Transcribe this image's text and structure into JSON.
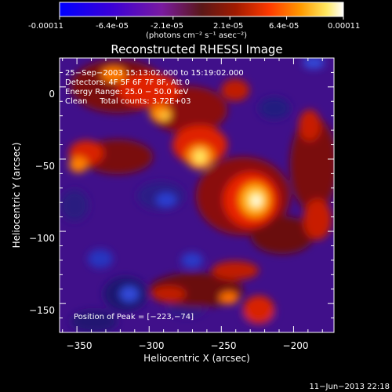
{
  "colorbar": {
    "tick_labels": [
      "-0.00011",
      "-6.4e-05",
      "-2.1e-05",
      "2.1e-05",
      "6.4e-05",
      "0.00011"
    ],
    "unit_label": "(photons cm⁻² s⁻¹ asec⁻²)",
    "colors": [
      "#0000ff",
      "#3a00d8",
      "#7a1aa0",
      "#5a1818",
      "#a01a00",
      "#ff3a00",
      "#ff9a00",
      "#ffe860",
      "#ffffff"
    ]
  },
  "chart_data": {
    "type": "heatmap",
    "title": "Reconstructed RHESSI Image",
    "xlabel": "Heliocentric X (arcsec)",
    "ylabel": "Heliocentric Y (arcsec)",
    "xlim": [
      -362,
      -172
    ],
    "ylim": [
      -170,
      20
    ],
    "x_ticks": [
      -350,
      -300,
      -250,
      -200
    ],
    "y_ticks": [
      0,
      -50,
      -100,
      -150
    ],
    "x_tick_labels": [
      "−350",
      "−300",
      "−250",
      "−200"
    ],
    "y_tick_labels": [
      "0",
      "−50",
      "−100",
      "−150"
    ],
    "grid": false,
    "value_range": [
      -0.00011,
      0.00011
    ],
    "peak": {
      "x": -223,
      "y": -74
    },
    "annotations": [
      "25−Sep−2003 15:13:02.000 to 15:19:02.000",
      "Detectors: 4F 5F 6F 7F 8F, Att 0",
      "Energy Range: 25.0 − 50.0 keV",
      "Clean     Total counts: 3.72E+03"
    ],
    "peak_label": "Position of Peak = [−223,−74]"
  },
  "footer": {
    "timestamp": "11−Jun−2013 22:18"
  }
}
